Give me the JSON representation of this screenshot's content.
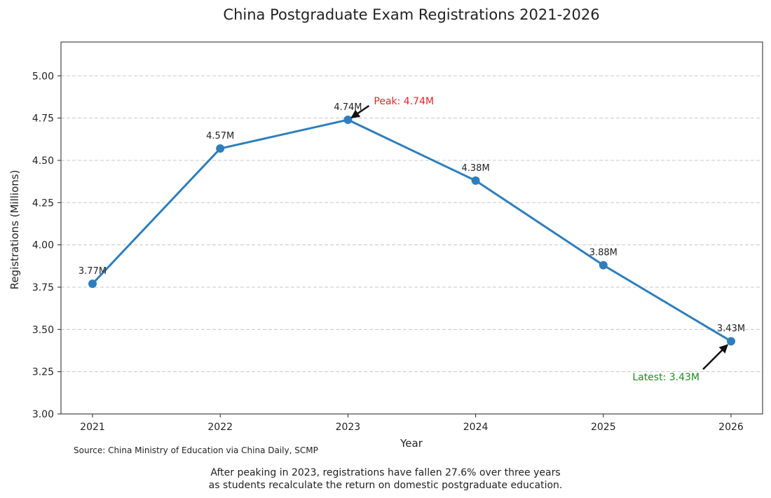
{
  "chart_data": {
    "type": "line",
    "title": "China Postgraduate Exam Registrations 2021-2026",
    "xlabel": "Year",
    "ylabel": "Registrations (Millions)",
    "x": [
      "2021",
      "2022",
      "2023",
      "2024",
      "2025",
      "2026"
    ],
    "series": [
      {
        "values": [
          3.77,
          4.57,
          4.74,
          4.38,
          3.88,
          3.43
        ],
        "color": "#2e7ebc"
      }
    ],
    "data_labels": [
      "3.77M",
      "4.57M",
      "4.74M",
      "4.38M",
      "3.88M",
      "3.43M"
    ],
    "ylim": [
      3.0,
      5.2
    ],
    "yticks": [
      3.0,
      3.25,
      3.5,
      3.75,
      4.0,
      4.25,
      4.5,
      4.75,
      5.0
    ],
    "ytick_labels": [
      "3.00",
      "3.25",
      "3.50",
      "3.75",
      "4.00",
      "4.25",
      "4.50",
      "4.75",
      "5.00"
    ],
    "grid": "horizontal-dashed",
    "annotations": [
      {
        "text": "Peak: 4.74M",
        "target_index": 2,
        "color": "#e8232a"
      },
      {
        "text": "Latest: 3.43M",
        "target_index": 5,
        "color": "#1f8a1f"
      }
    ]
  },
  "source": "Source: China Ministry of Education via China Daily, SCMP",
  "caption": [
    "After peaking in 2023, registrations have fallen 27.6% over three years",
    "as students recalculate the return on domestic postgraduate education."
  ]
}
